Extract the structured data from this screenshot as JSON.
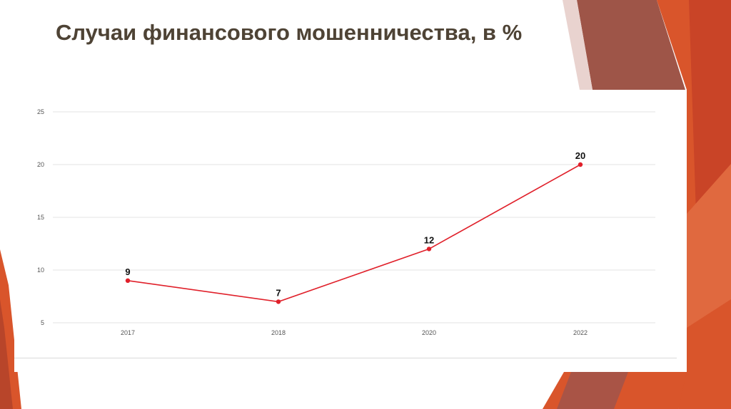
{
  "slide": {
    "title": "Случаи финансового мошенничества, в %",
    "colors": {
      "title": "#4e4335",
      "accent_orange": "#d9552b",
      "accent_brown": "#9e5548"
    }
  },
  "chart_data": {
    "type": "line",
    "title": "",
    "xlabel": "",
    "ylabel": "",
    "categories": [
      "2017",
      "2018",
      "2020",
      "2022"
    ],
    "series": [
      {
        "values": [
          9,
          7,
          12,
          20
        ],
        "color": "#e0202a"
      }
    ],
    "data_labels": [
      "9",
      "7",
      "12",
      "20"
    ],
    "ylim": [
      5,
      25
    ],
    "yticks": [
      5,
      10,
      15,
      20,
      25
    ],
    "ytick_labels": [
      "5",
      "10",
      "15",
      "20",
      "25"
    ],
    "grid": true,
    "legend": "none"
  }
}
